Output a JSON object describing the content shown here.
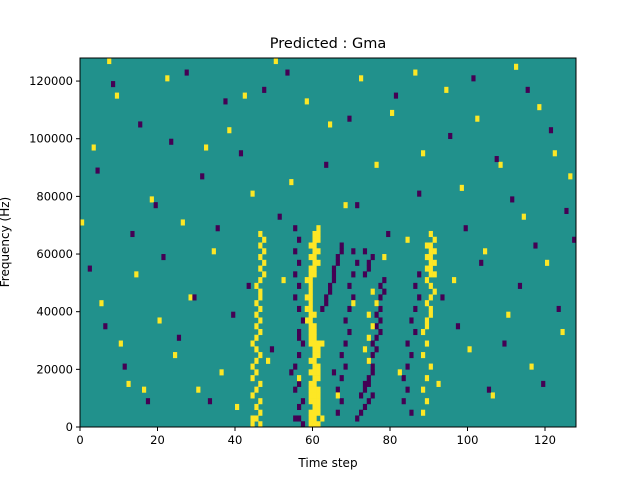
{
  "chart_data": {
    "type": "heatmap",
    "title": "Predicted : Gma",
    "xlabel": "Time step",
    "ylabel": "Frequency (Hz)",
    "xlim": [
      0,
      128
    ],
    "ylim": [
      0,
      128000
    ],
    "x_ticks": [
      0,
      20,
      40,
      60,
      80,
      100,
      120
    ],
    "y_ticks": [
      0,
      20000,
      40000,
      60000,
      80000,
      100000,
      120000
    ],
    "grid": false,
    "legend": "none",
    "colormap": "viridis",
    "value_levels": [
      -1,
      0,
      1
    ],
    "colors": {
      "low": "#440154",
      "mid": "#21918c",
      "high": "#fde725"
    },
    "rows": 64,
    "row_height_hz": 2000,
    "background_level": 0,
    "cells": [
      [
        44,
        0,
        1
      ],
      [
        44,
        1,
        1
      ],
      [
        45,
        1,
        1
      ],
      [
        46,
        0,
        1
      ],
      [
        46,
        2,
        1
      ],
      [
        45,
        3,
        1
      ],
      [
        46,
        4,
        1
      ],
      [
        44,
        5,
        1
      ],
      [
        45,
        6,
        1
      ],
      [
        46,
        7,
        1
      ],
      [
        44,
        8,
        1
      ],
      [
        45,
        9,
        1
      ],
      [
        44,
        10,
        1
      ],
      [
        45,
        11,
        1
      ],
      [
        46,
        12,
        1
      ],
      [
        45,
        13,
        1
      ],
      [
        44,
        14,
        1
      ],
      [
        45,
        15,
        1
      ],
      [
        46,
        16,
        1
      ],
      [
        45,
        17,
        1
      ],
      [
        46,
        18,
        1
      ],
      [
        45,
        19,
        1
      ],
      [
        46,
        20,
        1
      ],
      [
        45,
        21,
        1
      ],
      [
        46,
        22,
        1
      ],
      [
        46,
        23,
        1
      ],
      [
        45,
        24,
        1
      ],
      [
        46,
        25,
        1
      ],
      [
        47,
        26,
        1
      ],
      [
        46,
        27,
        1
      ],
      [
        47,
        28,
        1
      ],
      [
        46,
        29,
        1
      ],
      [
        47,
        30,
        1
      ],
      [
        46,
        31,
        1
      ],
      [
        47,
        32,
        1
      ],
      [
        46,
        33,
        1
      ],
      [
        59,
        0,
        1
      ],
      [
        60,
        0,
        1
      ],
      [
        61,
        0,
        1
      ],
      [
        59,
        1,
        1
      ],
      [
        60,
        1,
        1
      ],
      [
        62,
        1,
        1
      ],
      [
        59,
        2,
        1
      ],
      [
        60,
        2,
        1
      ],
      [
        61,
        2,
        1
      ],
      [
        60,
        3,
        1
      ],
      [
        61,
        3,
        1
      ],
      [
        59,
        4,
        1
      ],
      [
        60,
        4,
        1
      ],
      [
        61,
        4,
        1
      ],
      [
        59,
        5,
        1
      ],
      [
        60,
        5,
        1
      ],
      [
        61,
        5,
        1
      ],
      [
        59,
        6,
        1
      ],
      [
        60,
        6,
        1
      ],
      [
        61,
        6,
        1
      ],
      [
        59,
        7,
        1
      ],
      [
        60,
        7,
        1
      ],
      [
        60,
        8,
        1
      ],
      [
        61,
        8,
        1
      ],
      [
        59,
        9,
        1
      ],
      [
        60,
        9,
        1
      ],
      [
        61,
        9,
        1
      ],
      [
        60,
        10,
        1
      ],
      [
        61,
        10,
        1
      ],
      [
        59,
        11,
        1
      ],
      [
        60,
        11,
        1
      ],
      [
        60,
        12,
        1
      ],
      [
        61,
        12,
        1
      ],
      [
        60,
        13,
        1
      ],
      [
        61,
        13,
        1
      ],
      [
        59,
        14,
        1
      ],
      [
        60,
        14,
        1
      ],
      [
        61,
        14,
        1
      ],
      [
        59,
        15,
        1
      ],
      [
        60,
        15,
        1
      ],
      [
        59,
        16,
        1
      ],
      [
        60,
        16,
        1
      ],
      [
        59,
        17,
        1
      ],
      [
        60,
        17,
        1
      ],
      [
        58,
        18,
        1
      ],
      [
        59,
        18,
        1
      ],
      [
        59,
        19,
        1
      ],
      [
        60,
        19,
        1
      ],
      [
        58,
        20,
        1
      ],
      [
        59,
        20,
        1
      ],
      [
        59,
        21,
        1
      ],
      [
        58,
        22,
        1
      ],
      [
        59,
        22,
        1
      ],
      [
        59,
        23,
        1
      ],
      [
        59,
        24,
        1
      ],
      [
        58,
        25,
        1
      ],
      [
        59,
        25,
        1
      ],
      [
        59,
        26,
        1
      ],
      [
        60,
        26,
        1
      ],
      [
        59,
        27,
        1
      ],
      [
        60,
        27,
        1
      ],
      [
        60,
        28,
        1
      ],
      [
        61,
        28,
        1
      ],
      [
        59,
        29,
        1
      ],
      [
        60,
        29,
        1
      ],
      [
        60,
        30,
        1
      ],
      [
        61,
        30,
        1
      ],
      [
        59,
        31,
        1
      ],
      [
        60,
        31,
        1
      ],
      [
        60,
        32,
        1
      ],
      [
        61,
        32,
        1
      ],
      [
        60,
        33,
        1
      ],
      [
        61,
        33,
        1
      ],
      [
        61,
        34,
        1
      ],
      [
        55,
        1,
        -1
      ],
      [
        56,
        1,
        -1
      ],
      [
        57,
        0,
        -1
      ],
      [
        56,
        3,
        -1
      ],
      [
        57,
        4,
        -1
      ],
      [
        55,
        6,
        -1
      ],
      [
        56,
        7,
        -1
      ],
      [
        54,
        9,
        -1
      ],
      [
        55,
        10,
        -1
      ],
      [
        56,
        12,
        -1
      ],
      [
        57,
        14,
        -1
      ],
      [
        56,
        15,
        -1
      ],
      [
        56,
        16,
        -1
      ],
      [
        57,
        18,
        -1
      ],
      [
        56,
        20,
        -1
      ],
      [
        55,
        22,
        -1
      ],
      [
        56,
        24,
        -1
      ],
      [
        55,
        26,
        -1
      ],
      [
        56,
        28,
        -1
      ],
      [
        55,
        30,
        -1
      ],
      [
        56,
        32,
        -1
      ],
      [
        55,
        34,
        -1
      ],
      [
        62,
        20,
        -1
      ],
      [
        63,
        21,
        -1
      ],
      [
        63,
        22,
        -1
      ],
      [
        64,
        23,
        -1
      ],
      [
        64,
        24,
        -1
      ],
      [
        65,
        25,
        -1
      ],
      [
        65,
        26,
        -1
      ],
      [
        65,
        27,
        -1
      ],
      [
        66,
        28,
        -1
      ],
      [
        66,
        29,
        -1
      ],
      [
        67,
        30,
        -1
      ],
      [
        67,
        31,
        -1
      ],
      [
        66,
        2,
        -1
      ],
      [
        67,
        4,
        -1
      ],
      [
        66,
        6,
        -1
      ],
      [
        67,
        8,
        -1
      ],
      [
        68,
        10,
        -1
      ],
      [
        67,
        12,
        -1
      ],
      [
        68,
        14,
        -1
      ],
      [
        69,
        16,
        -1
      ],
      [
        68,
        18,
        -1
      ],
      [
        69,
        20,
        -1
      ],
      [
        70,
        22,
        -1
      ],
      [
        69,
        24,
        -1
      ],
      [
        70,
        26,
        -1
      ],
      [
        71,
        28,
        -1
      ],
      [
        70,
        30,
        -1
      ],
      [
        71,
        1,
        -1
      ],
      [
        72,
        2,
        -1
      ],
      [
        73,
        3,
        -1
      ],
      [
        72,
        5,
        -1
      ],
      [
        73,
        6,
        -1
      ],
      [
        73,
        7,
        -1
      ],
      [
        74,
        8,
        -1
      ],
      [
        75,
        10,
        -1
      ],
      [
        74,
        11,
        -1
      ],
      [
        75,
        12,
        -1
      ],
      [
        76,
        13,
        -1
      ],
      [
        75,
        14,
        -1
      ],
      [
        76,
        15,
        -1
      ],
      [
        77,
        16,
        -1
      ],
      [
        76,
        17,
        -1
      ],
      [
        77,
        18,
        -1
      ],
      [
        76,
        19,
        -1
      ],
      [
        77,
        20,
        -1
      ],
      [
        76,
        21,
        -1
      ],
      [
        77,
        22,
        -1
      ],
      [
        78,
        23,
        -1
      ],
      [
        77,
        24,
        -1
      ],
      [
        78,
        25,
        -1
      ],
      [
        74,
        4,
        -1
      ],
      [
        75,
        5,
        -1
      ],
      [
        74,
        7,
        -1
      ],
      [
        75,
        9,
        -1
      ],
      [
        73,
        26,
        -1
      ],
      [
        74,
        27,
        -1
      ],
      [
        74,
        28,
        -1
      ],
      [
        75,
        29,
        -1
      ],
      [
        73,
        30,
        -1
      ],
      [
        83,
        4,
        -1
      ],
      [
        84,
        6,
        -1
      ],
      [
        83,
        8,
        -1
      ],
      [
        84,
        10,
        -1
      ],
      [
        85,
        12,
        -1
      ],
      [
        84,
        14,
        -1
      ],
      [
        86,
        16,
        -1
      ],
      [
        85,
        18,
        -1
      ],
      [
        86,
        20,
        -1
      ],
      [
        87,
        22,
        -1
      ],
      [
        86,
        24,
        -1
      ],
      [
        87,
        26,
        -1
      ],
      [
        73,
        13,
        1
      ],
      [
        74,
        15,
        1
      ],
      [
        75,
        17,
        1
      ],
      [
        74,
        19,
        1
      ],
      [
        76,
        21,
        1
      ],
      [
        75,
        23,
        1
      ],
      [
        88,
        16,
        1
      ],
      [
        89,
        17,
        1
      ],
      [
        89,
        18,
        1
      ],
      [
        90,
        19,
        1
      ],
      [
        90,
        20,
        1
      ],
      [
        89,
        21,
        1
      ],
      [
        90,
        22,
        1
      ],
      [
        91,
        23,
        1
      ],
      [
        90,
        24,
        1
      ],
      [
        89,
        25,
        1
      ],
      [
        90,
        26,
        1
      ],
      [
        91,
        26,
        1
      ],
      [
        89,
        27,
        1
      ],
      [
        90,
        27,
        1
      ],
      [
        90,
        28,
        1
      ],
      [
        91,
        28,
        1
      ],
      [
        89,
        29,
        1
      ],
      [
        90,
        29,
        1
      ],
      [
        90,
        30,
        1
      ],
      [
        91,
        30,
        1
      ],
      [
        89,
        31,
        1
      ],
      [
        90,
        31,
        1
      ],
      [
        91,
        32,
        1
      ],
      [
        90,
        33,
        1
      ],
      [
        88,
        2,
        1
      ],
      [
        89,
        4,
        1
      ],
      [
        88,
        6,
        1
      ],
      [
        89,
        8,
        1
      ],
      [
        90,
        10,
        1
      ],
      [
        88,
        12,
        1
      ],
      [
        89,
        14,
        1
      ],
      [
        0,
        35,
        1
      ],
      [
        3,
        48,
        1
      ],
      [
        5,
        21,
        1
      ],
      [
        7,
        63,
        1
      ],
      [
        9,
        57,
        1
      ],
      [
        10,
        14,
        1
      ],
      [
        12,
        7,
        1
      ],
      [
        14,
        26,
        1
      ],
      [
        16,
        6,
        1
      ],
      [
        18,
        39,
        1
      ],
      [
        20,
        18,
        1
      ],
      [
        22,
        60,
        1
      ],
      [
        24,
        12,
        1
      ],
      [
        26,
        35,
        1
      ],
      [
        28,
        22,
        1
      ],
      [
        30,
        6,
        1
      ],
      [
        32,
        48,
        1
      ],
      [
        34,
        30,
        1
      ],
      [
        36,
        9,
        1
      ],
      [
        38,
        51,
        1
      ],
      [
        40,
        3,
        1
      ],
      [
        42,
        57,
        1
      ],
      [
        44,
        40,
        1
      ],
      [
        48,
        11,
        1
      ],
      [
        50,
        63,
        1
      ],
      [
        52,
        25,
        1
      ],
      [
        54,
        42,
        1
      ],
      [
        56,
        8,
        1
      ],
      [
        58,
        56,
        1
      ],
      [
        62,
        14,
        1
      ],
      [
        64,
        52,
        1
      ],
      [
        66,
        5,
        1
      ],
      [
        68,
        38,
        1
      ],
      [
        70,
        21,
        1
      ],
      [
        72,
        60,
        1
      ],
      [
        74,
        11,
        1
      ],
      [
        76,
        45,
        1
      ],
      [
        78,
        29,
        1
      ],
      [
        80,
        54,
        1
      ],
      [
        82,
        9,
        1
      ],
      [
        84,
        32,
        1
      ],
      [
        86,
        61,
        1
      ],
      [
        88,
        47,
        1
      ],
      [
        92,
        7,
        1
      ],
      [
        94,
        58,
        1
      ],
      [
        96,
        25,
        1
      ],
      [
        98,
        41,
        1
      ],
      [
        100,
        13,
        1
      ],
      [
        102,
        53,
        1
      ],
      [
        104,
        30,
        1
      ],
      [
        106,
        5,
        1
      ],
      [
        108,
        45,
        1
      ],
      [
        110,
        19,
        1
      ],
      [
        112,
        62,
        1
      ],
      [
        114,
        36,
        1
      ],
      [
        116,
        10,
        1
      ],
      [
        118,
        55,
        1
      ],
      [
        120,
        28,
        1
      ],
      [
        122,
        47,
        1
      ],
      [
        124,
        16,
        1
      ],
      [
        126,
        43,
        1
      ],
      [
        2,
        27,
        -1
      ],
      [
        4,
        44,
        -1
      ],
      [
        6,
        17,
        -1
      ],
      [
        8,
        59,
        -1
      ],
      [
        11,
        10,
        -1
      ],
      [
        13,
        33,
        -1
      ],
      [
        15,
        52,
        -1
      ],
      [
        17,
        4,
        -1
      ],
      [
        19,
        38,
        -1
      ],
      [
        21,
        29,
        -1
      ],
      [
        23,
        49,
        -1
      ],
      [
        25,
        15,
        -1
      ],
      [
        27,
        61,
        -1
      ],
      [
        29,
        22,
        -1
      ],
      [
        31,
        43,
        -1
      ],
      [
        33,
        4,
        -1
      ],
      [
        35,
        34,
        -1
      ],
      [
        37,
        56,
        -1
      ],
      [
        39,
        19,
        -1
      ],
      [
        41,
        47,
        -1
      ],
      [
        43,
        24,
        -1
      ],
      [
        47,
        58,
        -1
      ],
      [
        49,
        13,
        -1
      ],
      [
        51,
        36,
        -1
      ],
      [
        53,
        61,
        -1
      ],
      [
        63,
        45,
        -1
      ],
      [
        65,
        9,
        -1
      ],
      [
        69,
        53,
        -1
      ],
      [
        71,
        38,
        -1
      ],
      [
        79,
        33,
        -1
      ],
      [
        81,
        57,
        -1
      ],
      [
        85,
        2,
        -1
      ],
      [
        87,
        40,
        -1
      ],
      [
        93,
        22,
        -1
      ],
      [
        95,
        50,
        -1
      ],
      [
        97,
        17,
        -1
      ],
      [
        99,
        34,
        -1
      ],
      [
        101,
        60,
        -1
      ],
      [
        103,
        28,
        -1
      ],
      [
        105,
        6,
        -1
      ],
      [
        107,
        46,
        -1
      ],
      [
        109,
        14,
        -1
      ],
      [
        111,
        39,
        -1
      ],
      [
        113,
        24,
        -1
      ],
      [
        115,
        58,
        -1
      ],
      [
        117,
        31,
        -1
      ],
      [
        119,
        7,
        -1
      ],
      [
        121,
        51,
        -1
      ],
      [
        123,
        20,
        -1
      ],
      [
        125,
        37,
        -1
      ],
      [
        127,
        32,
        -1
      ]
    ]
  }
}
